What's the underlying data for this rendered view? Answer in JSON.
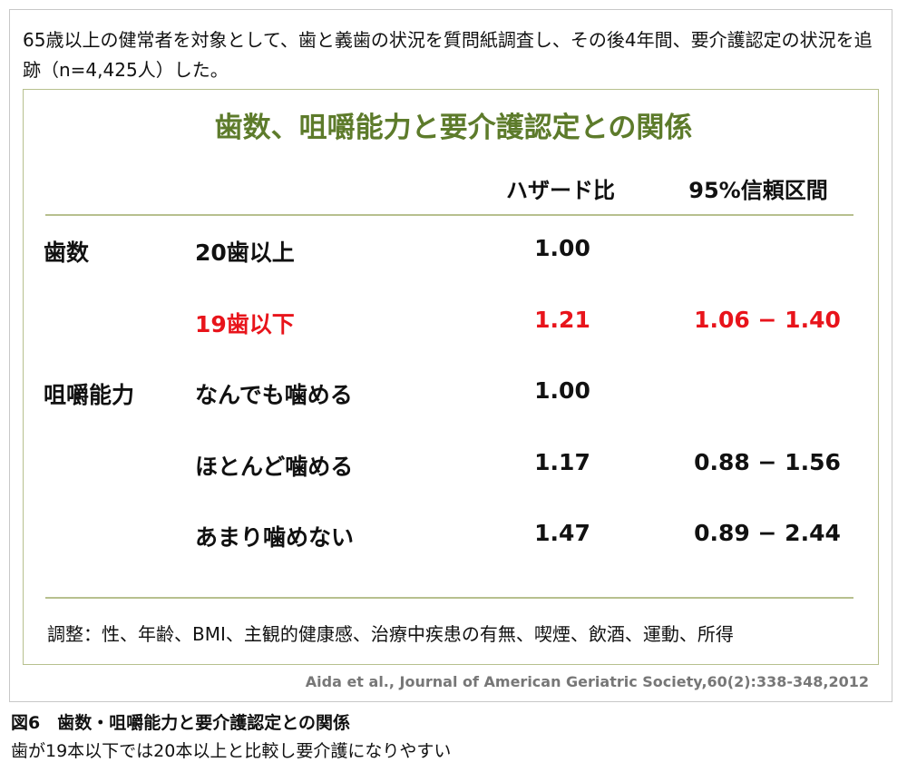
{
  "intro": "65歳以上の健常者を対象として、歯と義歯の状況を質問紙調査し、その後4年間、要介護認定の状況を追跡（n=4,425人）した。",
  "table": {
    "title": "歯数、咀嚼能力と要介護認定との関係",
    "headers": {
      "hr": "ハザード比",
      "ci": "95%信頼区間"
    },
    "groups": [
      {
        "label": "歯数",
        "rows": [
          {
            "label": "20歯以上",
            "hr": "1.00"
          },
          {
            "label": "19歯以下",
            "hr": "1.21",
            "ci": "1.06 − 1.40",
            "color": "#e8141b"
          }
        ]
      },
      {
        "label": "咀嚼能力",
        "rows": [
          {
            "label": "なんでも噛める",
            "hr": "1.00"
          },
          {
            "label": "ほとんど噛める",
            "hr": "1.17",
            "ci": "0.88 − 1.56"
          },
          {
            "label": "あまり噛めない",
            "hr": "1.47",
            "ci": "0.89 − 2.44"
          }
        ]
      }
    ],
    "note": "調整：性、年齢、BMI、主観的健康感、治療中疾患の有無、喫煙、飲酒、運動、所得"
  },
  "citation": "Aida et al., Journal of American Geriatric Society,60(2):338-348,2012",
  "caption": {
    "title": "図6　歯数・咀嚼能力と要介護認定との関係",
    "text": "歯が19本以下では20本以上と比較し要介護になりやすい"
  }
}
